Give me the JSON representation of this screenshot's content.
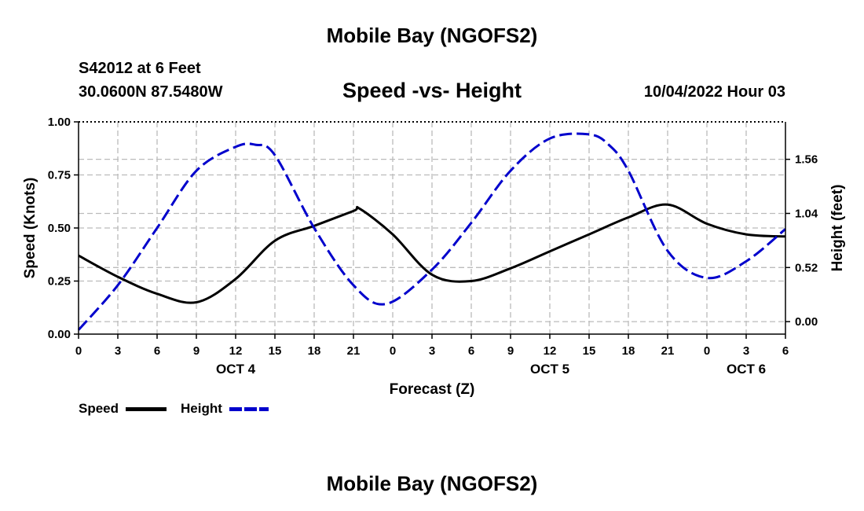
{
  "header": {
    "title": "Mobile Bay (NGOFS2)",
    "station": "S42012 at 6 Feet",
    "coords": "30.0600N  87.5480W",
    "chart_title": "Speed -vs- Height",
    "timestamp": "10/04/2022 Hour 03"
  },
  "footer": {
    "title": "Mobile Bay (NGOFS2)"
  },
  "legend": [
    {
      "label": "Speed",
      "color": "#000000",
      "style": "solid"
    },
    {
      "label": "Height",
      "color": "#0000cc",
      "style": "dashed"
    }
  ],
  "chart_data": {
    "type": "line",
    "title": "Speed -vs- Height",
    "xlabel": "Forecast (Z)",
    "ylabel": "Speed (Knots)",
    "y2label": "Height (feet)",
    "x_ticks": [
      "0",
      "3",
      "6",
      "9",
      "12",
      "15",
      "18",
      "21",
      "0",
      "3",
      "6",
      "9",
      "12",
      "15",
      "18",
      "21",
      "0",
      "3",
      "6"
    ],
    "day_labels": [
      {
        "label": "OCT 4",
        "at_hour": 12
      },
      {
        "label": "OCT 5",
        "at_hour": 36
      },
      {
        "label": "OCT 6",
        "at_hour": 51
      }
    ],
    "xlim": [
      0,
      54
    ],
    "ylim": [
      0,
      1.0
    ],
    "y_ticks": [
      "0.00",
      "0.25",
      "0.50",
      "0.75",
      "1.00"
    ],
    "y2lim": [
      -0.12,
      1.92
    ],
    "y2_ticks": [
      "0.00",
      "0.52",
      "1.04",
      "1.56"
    ],
    "grid": true,
    "series": [
      {
        "name": "Speed",
        "axis": "left",
        "color": "#000000",
        "style": "solid",
        "x": [
          0,
          3,
          6,
          9,
          12,
          15,
          18,
          21,
          21.5,
          24,
          27,
          30,
          33,
          36,
          39,
          42,
          45,
          48,
          51,
          54
        ],
        "y": [
          0.37,
          0.27,
          0.19,
          0.15,
          0.26,
          0.44,
          0.51,
          0.58,
          0.59,
          0.47,
          0.28,
          0.25,
          0.31,
          0.39,
          0.47,
          0.55,
          0.61,
          0.52,
          0.47,
          0.46
        ]
      },
      {
        "name": "Height",
        "axis": "right",
        "color": "#0000cc",
        "style": "dashed",
        "x": [
          0,
          3,
          6,
          9,
          12,
          13.5,
          15,
          18,
          21,
          23.5,
          27,
          30,
          33,
          36,
          39,
          40.5,
          42,
          45,
          48,
          51,
          54
        ],
        "y": [
          -0.08,
          0.35,
          0.9,
          1.45,
          1.68,
          1.7,
          1.6,
          0.9,
          0.35,
          0.17,
          0.5,
          0.95,
          1.45,
          1.76,
          1.8,
          1.7,
          1.45,
          0.68,
          0.42,
          0.58,
          0.89
        ]
      }
    ]
  }
}
